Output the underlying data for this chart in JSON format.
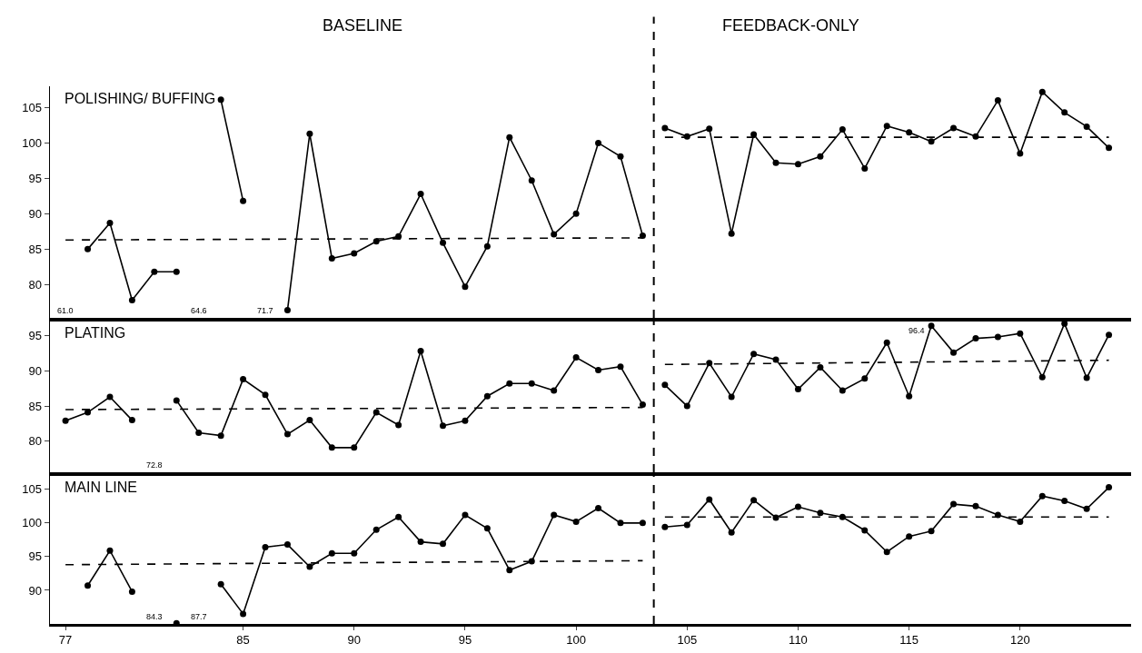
{
  "chart_data": [
    {
      "type": "line",
      "title": "POLISHING/ BUFFING",
      "xlim": [
        76.3,
        125
      ],
      "ylim": [
        75.3,
        108
      ],
      "xticks": [
        77,
        85,
        90,
        95,
        100,
        105,
        110,
        115,
        120
      ],
      "yticks": [
        80,
        85,
        90,
        95,
        100,
        105
      ],
      "tick_labels": "y",
      "annotations": [
        "BASELINE",
        "FEEDBACK-ONLY",
        "61.0",
        "64.6",
        "71.7"
      ],
      "ref_lines": [
        {
          "axis": "x",
          "value": 103.5,
          "line_style": "dashed",
          "color": "#000000"
        }
      ],
      "series": [
        {
          "color": "#000000",
          "marker": "circle",
          "line_style": "solid",
          "x": [
            78,
            79,
            80,
            81,
            82,
            83,
            84,
            85,
            86,
            87,
            88,
            89,
            90,
            91,
            92,
            93,
            94,
            95,
            96,
            97,
            98,
            99,
            100,
            101,
            102,
            103
          ],
          "values": [
            85.0,
            88.7,
            77.8,
            81.8,
            81.8,
            null,
            106.1,
            91.8,
            null,
            76.4,
            101.3,
            83.7,
            84.4,
            86.1,
            86.8,
            92.8,
            85.9,
            79.7,
            85.4,
            100.8,
            94.7,
            87.1,
            90.0,
            100.0,
            98.1,
            86.9
          ]
        },
        {
          "color": "#000000",
          "marker": "circle",
          "line_style": "solid",
          "x": [
            104,
            105,
            106,
            107,
            108,
            109,
            110,
            111,
            112,
            113,
            114,
            115,
            116,
            117,
            118,
            119,
            120,
            121,
            122,
            123,
            124
          ],
          "values": [
            102.1,
            100.9,
            102.0,
            87.2,
            101.2,
            97.2,
            97.0,
            98.1,
            101.9,
            96.4,
            102.4,
            101.5,
            100.2,
            102.1,
            100.9,
            106.0,
            98.5,
            107.2,
            104.3,
            102.3,
            99.3
          ]
        },
        {
          "color": "#000000",
          "marker": "none",
          "line_style": "dashed",
          "x": [
            77,
            103
          ],
          "values": [
            86.3,
            86.6
          ]
        },
        {
          "color": "#000000",
          "marker": "none",
          "line_style": "dashed",
          "x": [
            104,
            124
          ],
          "values": [
            100.8,
            100.8
          ]
        }
      ]
    },
    {
      "type": "line",
      "title": "PLATING",
      "xlim": [
        76.3,
        125
      ],
      "ylim": [
        75.6,
        97
      ],
      "xticks": [
        77,
        85,
        90,
        95,
        100,
        105,
        110,
        115,
        120
      ],
      "yticks": [
        80,
        85,
        90,
        95
      ],
      "tick_labels": "y",
      "annotations": [
        "72.8",
        {
          "text": "96.4",
          "x": 116,
          "y": 96.4
        }
      ],
      "ref_lines": [
        {
          "axis": "x",
          "value": 103.5,
          "line_style": "dashed",
          "color": "#000000"
        }
      ],
      "series": [
        {
          "color": "#000000",
          "marker": "circle",
          "line_style": "solid",
          "x": [
            77,
            78,
            79,
            80,
            81,
            82,
            83,
            84,
            85,
            86,
            87,
            88,
            89,
            90,
            91,
            92,
            93,
            94,
            95,
            96,
            97,
            98,
            99,
            100,
            101,
            102,
            103
          ],
          "values": [
            82.9,
            84.1,
            86.3,
            83.0,
            null,
            85.8,
            81.2,
            80.8,
            88.8,
            86.6,
            81.0,
            83.0,
            79.1,
            79.1,
            84.1,
            82.3,
            92.8,
            82.2,
            82.9,
            86.4,
            88.2,
            88.2,
            87.2,
            91.9,
            90.1,
            90.6,
            85.2
          ]
        },
        {
          "color": "#000000",
          "marker": "circle",
          "line_style": "solid",
          "x": [
            104,
            105,
            106,
            107,
            108,
            109,
            110,
            111,
            112,
            113,
            114,
            115,
            116,
            117,
            118,
            119,
            120,
            121,
            122,
            123,
            124
          ],
          "values": [
            88.0,
            85.0,
            91.1,
            86.3,
            92.4,
            91.6,
            87.4,
            90.5,
            87.2,
            88.9,
            94.0,
            86.4,
            96.4,
            92.6,
            94.6,
            94.8,
            95.3,
            89.1,
            96.7,
            89.0,
            95.1
          ]
        },
        {
          "color": "#000000",
          "marker": "none",
          "line_style": "dashed",
          "x": [
            77,
            103
          ],
          "values": [
            84.5,
            84.8
          ]
        },
        {
          "color": "#000000",
          "marker": "none",
          "line_style": "dashed",
          "x": [
            104,
            124
          ],
          "values": [
            90.9,
            91.5
          ]
        }
      ]
    },
    {
      "type": "line",
      "title": "MAIN LINE",
      "xlim": [
        76.3,
        125
      ],
      "ylim": [
        85,
        107
      ],
      "xticks": [
        77,
        85,
        90,
        95,
        100,
        105,
        110,
        115,
        120
      ],
      "yticks": [
        90,
        95,
        100,
        105
      ],
      "annotations": [
        "84.3",
        "87.7"
      ],
      "ref_lines": [
        {
          "axis": "x",
          "value": 103.5,
          "line_style": "dashed",
          "color": "#000000"
        }
      ],
      "series": [
        {
          "color": "#000000",
          "marker": "circle",
          "line_style": "solid",
          "x": [
            78,
            79,
            80,
            81,
            82,
            83,
            84,
            85,
            86,
            87,
            88,
            89,
            90,
            91,
            92,
            93,
            94,
            95,
            96,
            97,
            98,
            99,
            100,
            101,
            102,
            103
          ],
          "values": [
            90.7,
            95.9,
            89.8,
            null,
            85.1,
            null,
            90.9,
            86.5,
            96.4,
            96.8,
            93.5,
            95.5,
            95.5,
            99.0,
            100.9,
            97.2,
            96.9,
            101.2,
            99.2,
            93.0,
            94.3,
            101.2,
            100.2,
            102.2,
            100.0,
            100.0
          ]
        },
        {
          "color": "#000000",
          "marker": "circle",
          "line_style": "solid",
          "x": [
            104,
            105,
            106,
            107,
            108,
            109,
            110,
            111,
            112,
            113,
            114,
            115,
            116,
            117,
            118,
            119,
            120,
            121,
            122,
            123,
            124
          ],
          "values": [
            99.4,
            99.7,
            103.5,
            98.6,
            103.4,
            100.8,
            102.4,
            101.5,
            100.9,
            98.9,
            95.7,
            98.0,
            98.8,
            102.8,
            102.5,
            101.2,
            100.2,
            104.0,
            103.3,
            102.1,
            105.3
          ]
        },
        {
          "color": "#000000",
          "marker": "none",
          "line_style": "dashed",
          "x": [
            77,
            103
          ],
          "values": [
            93.8,
            94.4
          ]
        },
        {
          "color": "#000000",
          "marker": "none",
          "line_style": "dashed",
          "x": [
            104,
            124
          ],
          "values": [
            100.9,
            100.9
          ]
        }
      ]
    }
  ]
}
